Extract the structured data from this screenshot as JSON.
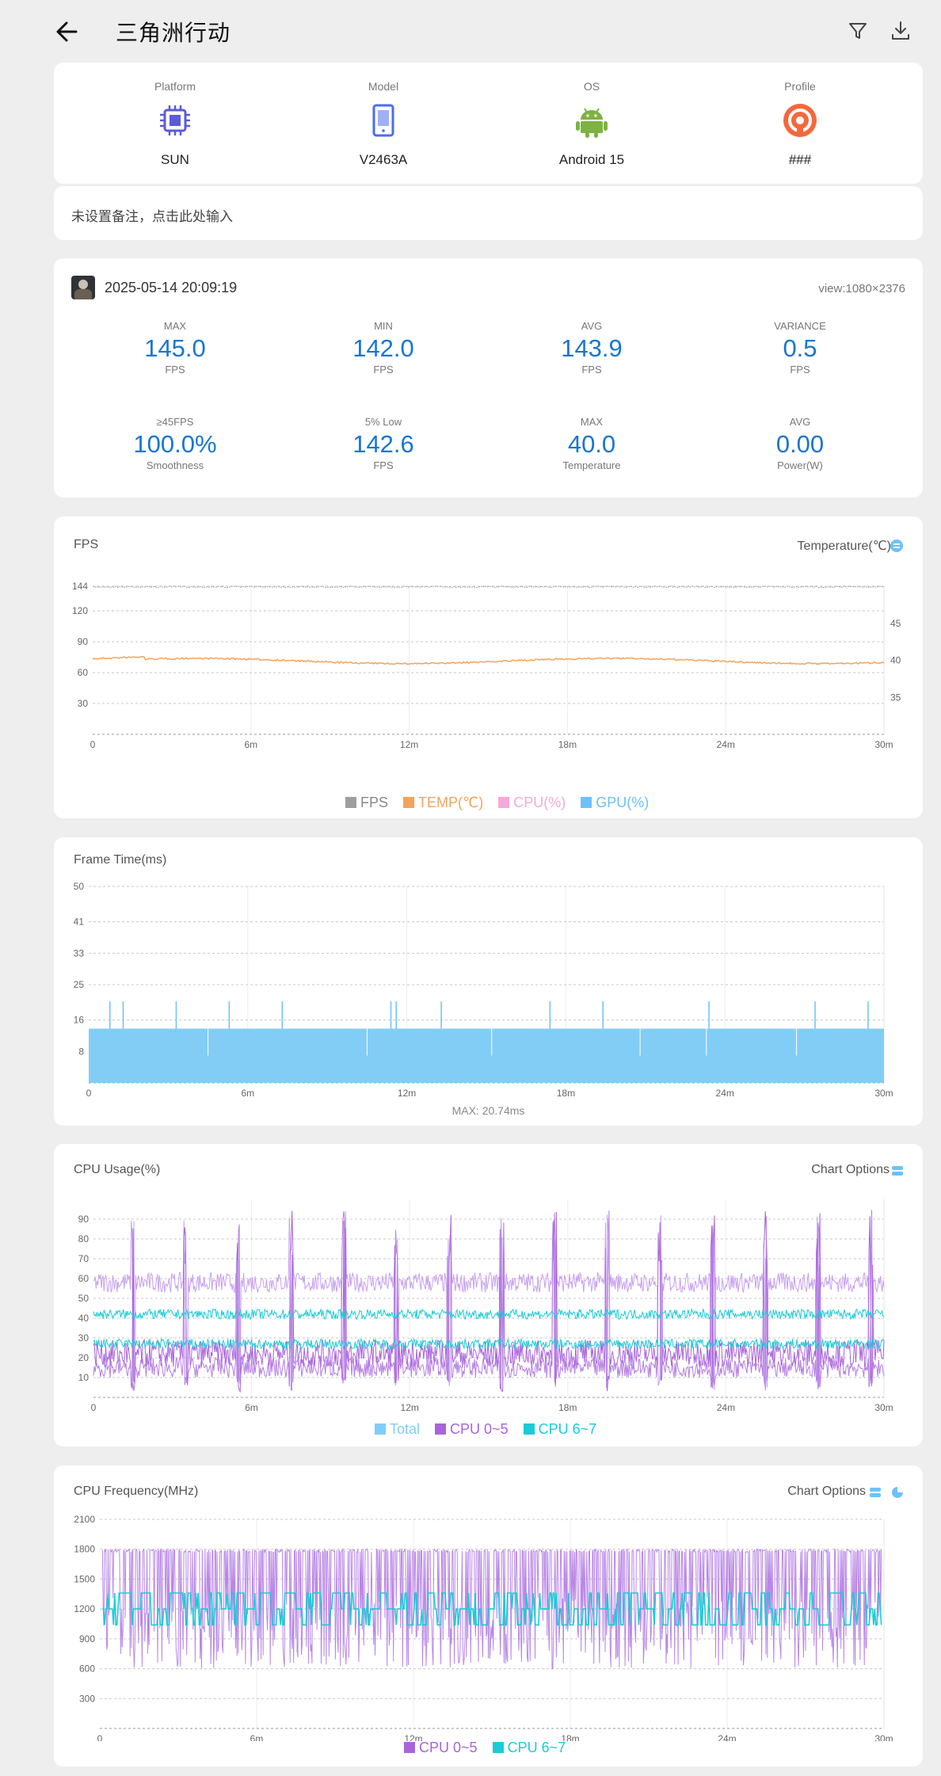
{
  "header": {
    "title": "三角洲行动",
    "back_icon": "arrow-left-icon",
    "filter_icon": "filter-icon",
    "download_icon": "download-icon"
  },
  "device": {
    "items": [
      {
        "label": "Platform",
        "value": "SUN",
        "icon": "chip-icon",
        "color": "#5b5bd6"
      },
      {
        "label": "Model",
        "value": "V2463A",
        "icon": "phone-icon",
        "color": "#4a6cf0"
      },
      {
        "label": "OS",
        "value": "Android 15",
        "icon": "android-icon",
        "color": "#7cb342"
      },
      {
        "label": "Profile",
        "value": "###",
        "icon": "profile-icon",
        "color": "#f4683c"
      }
    ]
  },
  "note": {
    "placeholder": "未设置备注，点击此处输入"
  },
  "session": {
    "timestamp": "2025-05-14 20:09:19",
    "view": "view:1080×2376",
    "stats_row1": [
      {
        "label": "MAX",
        "value": "145.0",
        "unit": "FPS"
      },
      {
        "label": "MIN",
        "value": "142.0",
        "unit": "FPS"
      },
      {
        "label": "AVG",
        "value": "143.9",
        "unit": "FPS"
      },
      {
        "label": "VARIANCE",
        "value": "0.5",
        "unit": "FPS"
      }
    ],
    "stats_row2": [
      {
        "label": "≥45FPS",
        "value": "100.0%",
        "unit": "Smoothness"
      },
      {
        "label": "5% Low",
        "value": "142.6",
        "unit": "FPS"
      },
      {
        "label": "MAX",
        "value": "40.0",
        "unit": "Temperature"
      },
      {
        "label": "AVG",
        "value": "0.00",
        "unit": "Power(W)"
      }
    ]
  },
  "fps_chart": {
    "title": "FPS",
    "right_label": "Temperature(℃)",
    "y_ticks": [
      "144",
      "120",
      "90",
      "60",
      "30"
    ],
    "y2_ticks": [
      "45",
      "40",
      "35"
    ],
    "x_ticks": [
      "0",
      "6m",
      "12m",
      "18m",
      "24m",
      "30m"
    ],
    "legend": [
      {
        "label": "FPS",
        "color": "#9e9e9e"
      },
      {
        "label": "TEMP(℃)",
        "color": "#f5a35c"
      },
      {
        "label": "CPU(%)",
        "color": "#f7a8d8"
      },
      {
        "label": "GPU(%)",
        "color": "#6ec1f7"
      }
    ]
  },
  "frametime_chart": {
    "title": "Frame Time(ms)",
    "y_ticks": [
      "50",
      "41",
      "33",
      "25",
      "16",
      "8"
    ],
    "x_ticks": [
      "0",
      "6m",
      "12m",
      "18m",
      "24m",
      "30m"
    ],
    "max_label": "MAX: 20.74ms"
  },
  "cpu_usage_chart": {
    "title": "CPU Usage(%)",
    "options_label": "Chart Options",
    "y_ticks": [
      "90",
      "80",
      "70",
      "60",
      "50",
      "40",
      "30",
      "20",
      "10"
    ],
    "x_ticks": [
      "0",
      "6m",
      "12m",
      "18m",
      "24m",
      "30m"
    ],
    "legend": [
      {
        "label": "Total",
        "color": "#82cdf5"
      },
      {
        "label": "CPU 0~5",
        "color": "#a964dc"
      },
      {
        "label": "CPU 6~7",
        "color": "#19ccd6"
      }
    ]
  },
  "cpu_freq_chart": {
    "title": "CPU Frequency(MHz)",
    "options_label": "Chart Options",
    "y_ticks": [
      "2100",
      "1800",
      "1500",
      "1200",
      "900",
      "600",
      "300"
    ],
    "x_ticks": [
      "0",
      "6m",
      "12m",
      "18m",
      "24m",
      "30m"
    ],
    "legend": [
      {
        "label": "CPU 0~5",
        "color": "#a964dc"
      },
      {
        "label": "CPU 6~7",
        "color": "#19ccd6"
      }
    ]
  },
  "chart_data": [
    {
      "type": "line",
      "title": "FPS",
      "x_range_minutes": [
        0,
        30
      ],
      "ylim": [
        0,
        144
      ],
      "y2lim": [
        30,
        50
      ],
      "series": [
        {
          "name": "FPS",
          "axis": "left",
          "approx_value": 144
        },
        {
          "name": "TEMP(℃)",
          "axis": "right",
          "approx_value": 40
        }
      ]
    },
    {
      "type": "area",
      "title": "Frame Time(ms)",
      "x_range_minutes": [
        0,
        30
      ],
      "ylim": [
        0,
        50
      ],
      "baseline_value": 6.9,
      "max_value": 20.74,
      "spike_minutes": [
        0.8,
        1.3,
        3.3,
        5.3,
        7.3,
        11.4,
        11.6,
        13.3,
        17.4,
        19.4,
        23.4,
        27.4,
        29.4
      ]
    },
    {
      "type": "line",
      "title": "CPU Usage(%)",
      "x_range_minutes": [
        0,
        30
      ],
      "ylim": [
        0,
        100
      ],
      "series": [
        {
          "name": "CPU 0~5",
          "typical_range": [
            10,
            62
          ],
          "spikes_to": 95
        },
        {
          "name": "CPU 6~7",
          "typical_range": [
            25,
            45
          ]
        }
      ]
    },
    {
      "type": "line",
      "title": "CPU Frequency(MHz)",
      "x_range_minutes": [
        0,
        30
      ],
      "ylim": [
        0,
        2100
      ],
      "series": [
        {
          "name": "CPU 0~5",
          "typical_range": [
            600,
            1800
          ]
        },
        {
          "name": "CPU 6~7",
          "typical_range": [
            1040,
            1360
          ]
        }
      ]
    }
  ]
}
